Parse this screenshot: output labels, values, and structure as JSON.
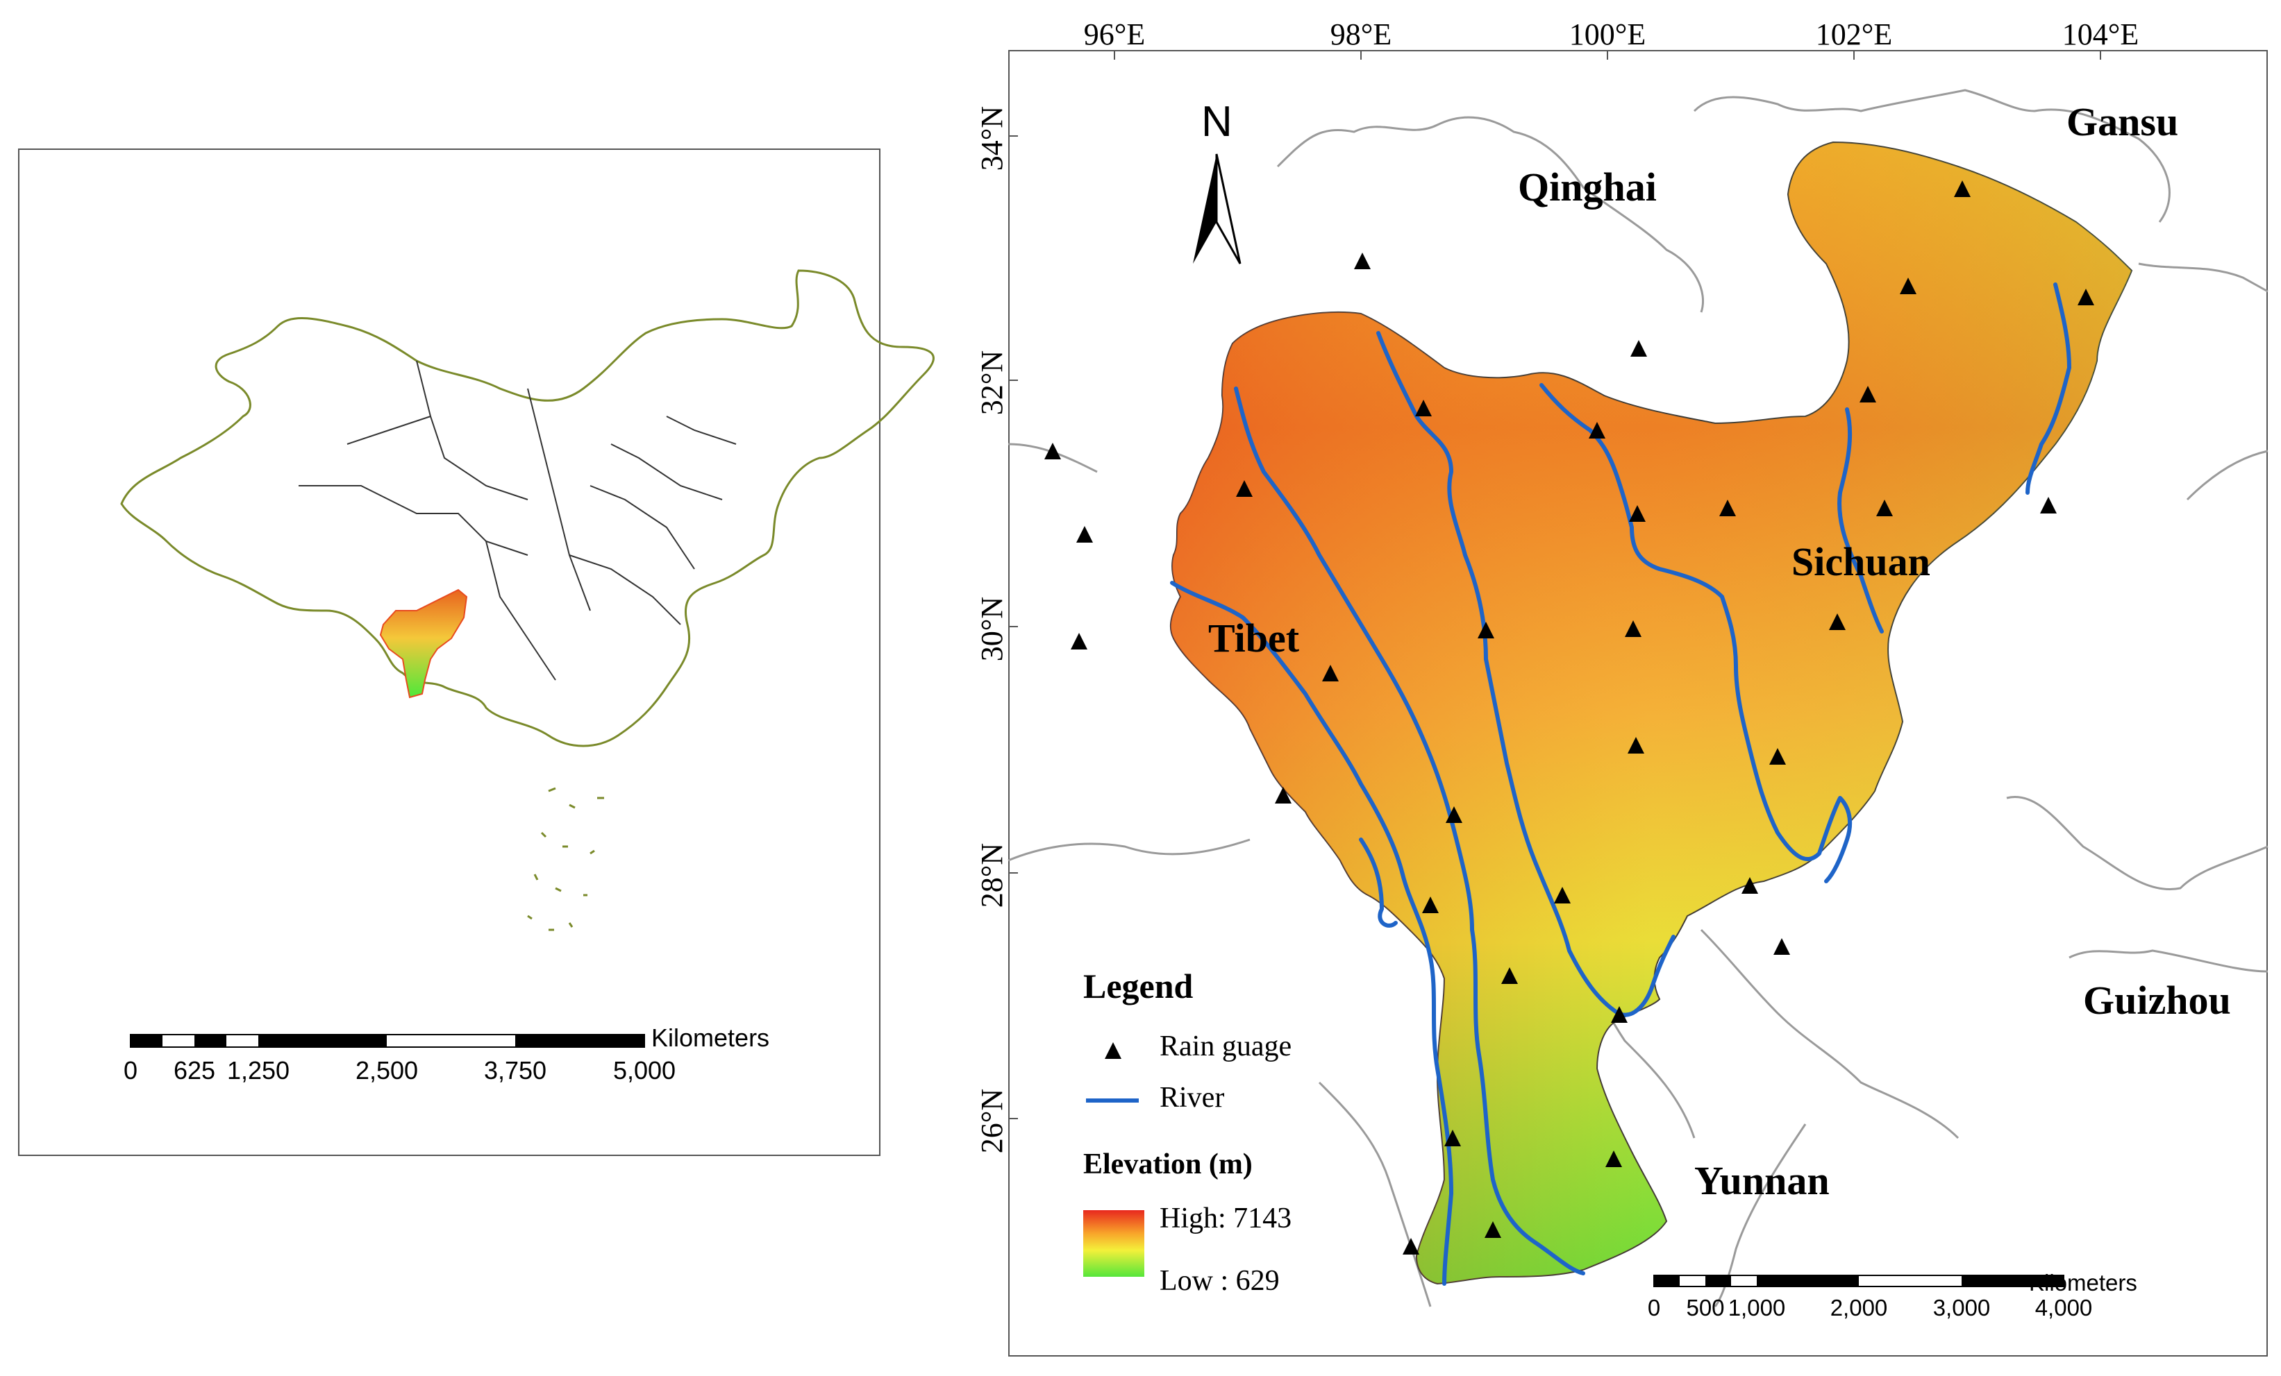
{
  "inset_map": {
    "scale_bar": {
      "unit": "Kilometers",
      "ticks": [
        "0",
        "625",
        "1,250",
        "2,500",
        "3,750",
        "5,000"
      ]
    }
  },
  "main_map": {
    "longitude_labels": [
      "96°E",
      "98°E",
      "100°E",
      "102°E",
      "104°E"
    ],
    "latitude_labels": [
      "34°N",
      "32°N",
      "30°N",
      "28°N",
      "26°N"
    ],
    "north_arrow": "N",
    "provinces": {
      "qinghai": "Qinghai",
      "gansu": "Gansu",
      "tibet": "Tibet",
      "sichuan": "Sichuan",
      "guizhou": "Guizhou",
      "yunnan": "Yunnan"
    },
    "legend": {
      "title": "Legend",
      "rain_gauge": "Rain guage",
      "river": "River",
      "elevation_title": "Elevation (m)",
      "high": "High: 7143",
      "low": "Low : 629"
    },
    "scale_bar": {
      "unit": "Kilometers",
      "ticks": [
        "0",
        "500",
        "1,000",
        "2,000",
        "3,000",
        "4,000"
      ]
    },
    "colors": {
      "river": "#1e64c8",
      "gauge": "#000000",
      "elevation_high": "#e8281e",
      "elevation_mid": "#f4f03a",
      "elevation_low": "#55e63a"
    }
  }
}
